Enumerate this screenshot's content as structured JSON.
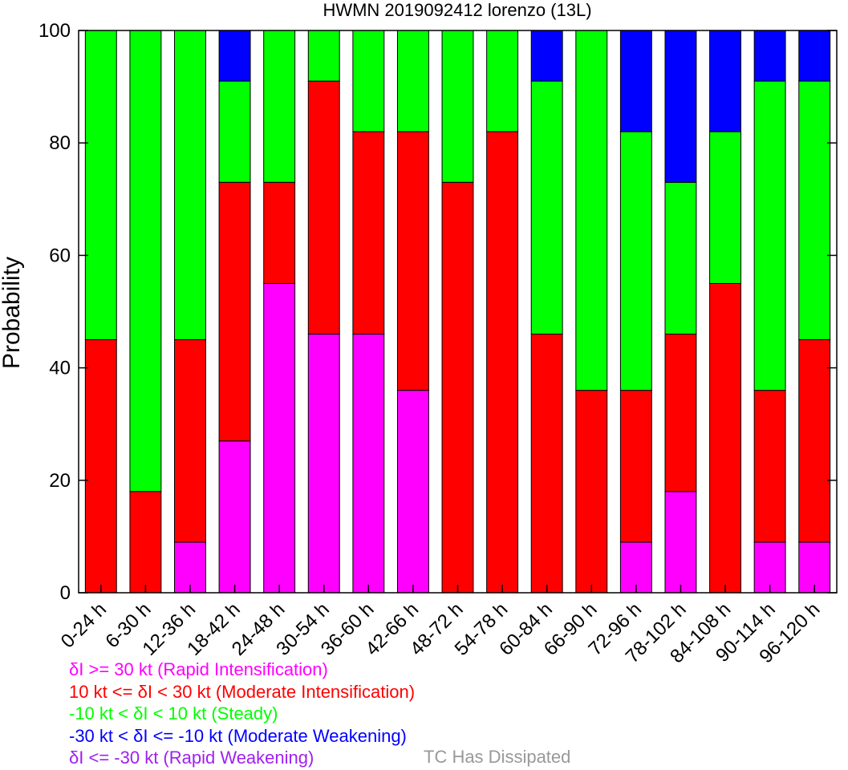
{
  "chart_data": {
    "type": "bar",
    "stacked": true,
    "title": "HWMN 2019092412 lorenzo (13L)",
    "xlabel": "",
    "ylabel": "Probability",
    "ylim": [
      0,
      100
    ],
    "yticks": [
      0,
      20,
      40,
      60,
      80,
      100
    ],
    "grid": false,
    "legend_position": "bottom-left",
    "categories": [
      "0-24 h",
      "6-30 h",
      "12-36 h",
      "18-42 h",
      "24-48 h",
      "30-54 h",
      "36-60 h",
      "42-66 h",
      "48-72 h",
      "54-78 h",
      "60-84 h",
      "66-90 h",
      "72-96 h",
      "78-102 h",
      "84-108 h",
      "90-114 h",
      "96-120 h"
    ],
    "series": [
      {
        "name": "δI >= 30 kt (Rapid Intensification)",
        "color": "#ff00ff",
        "values": [
          0,
          0,
          9,
          27,
          55,
          46,
          46,
          36,
          0,
          0,
          0,
          0,
          9,
          18,
          0,
          9,
          9
        ]
      },
      {
        "name": "10 kt <= δI < 30 kt (Moderate Intensification)",
        "color": "#ff0000",
        "values": [
          45,
          18,
          36,
          46,
          18,
          45,
          36,
          46,
          73,
          82,
          46,
          36,
          27,
          28,
          55,
          27,
          36
        ]
      },
      {
        "name": "-10 kt < δI < 10 kt (Steady)",
        "color": "#00ff00",
        "values": [
          55,
          82,
          55,
          18,
          27,
          9,
          18,
          18,
          27,
          18,
          45,
          64,
          46,
          27,
          27,
          55,
          46
        ]
      },
      {
        "name": "-30 kt < δI <= -10 kt (Moderate Weakening)",
        "color": "#0000ff",
        "values": [
          0,
          0,
          0,
          9,
          0,
          0,
          0,
          0,
          0,
          0,
          9,
          0,
          18,
          27,
          18,
          9,
          9
        ]
      },
      {
        "name": "δI <= -30 kt (Rapid Weakening)",
        "color": "#a020f0",
        "values": [
          0,
          0,
          0,
          0,
          0,
          0,
          0,
          0,
          0,
          0,
          0,
          0,
          0,
          0,
          0,
          0,
          0
        ]
      }
    ],
    "dissipated_label": "TC Has Dissipated",
    "dissipated_color": "#999999"
  }
}
